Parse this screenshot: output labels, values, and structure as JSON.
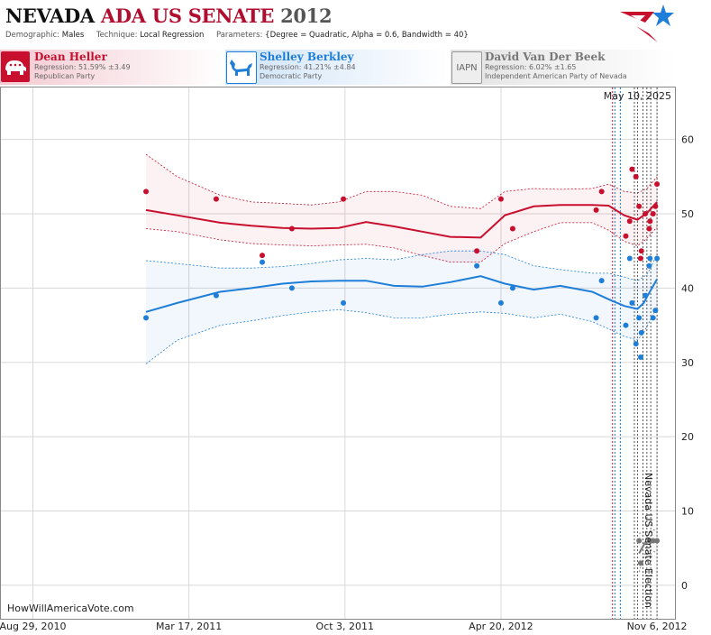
{
  "header": {
    "title_state": "NEVADA",
    "title_race": "ADA US SENATE",
    "title_year": "2012",
    "demographic_label": "Demographic:",
    "demographic_value": "Males",
    "technique_label": "Technique:",
    "technique_value": "Local Regression",
    "parameters_label": "Parameters:",
    "parameters_value": "{Degree = Quadratic, Alpha = 0.6, Bandwidth = 40}"
  },
  "candidates": [
    {
      "name": "Dean Heller",
      "regression": "Regression: 51.59% ±3.49",
      "party": "Republican Party",
      "color": "#c8102e",
      "icon": "elephant-icon"
    },
    {
      "name": "Shelley Berkley",
      "regression": "Regression: 41.21% ±4.84",
      "party": "Democratic Party",
      "color": "#1e7ed8",
      "icon": "donkey-icon"
    },
    {
      "name": "David Van Der Beek",
      "badge": "IAPN",
      "regression": "Regression: 6.02% ±1.65",
      "party": "Independent American Party of Nevada",
      "color": "#777777",
      "icon": "iapn-badge"
    }
  ],
  "watermark": "HowWillAmericaVote.com",
  "date_label": "May 10, 2025",
  "election_label": "Nevada US Senate Election",
  "chart_data": {
    "type": "scatter",
    "x_ticks": [
      "Aug 29, 2010",
      "Mar 17, 2011",
      "Oct 3, 2011",
      "Apr 20, 2012",
      "Nov 6, 2012"
    ],
    "xlim": [
      "2010-07-19",
      "2012-11-29"
    ],
    "ylim": [
      -4.5,
      67
    ],
    "y_ticks": [
      0,
      10,
      20,
      30,
      40,
      50,
      60
    ],
    "grid": true,
    "event_lines": [
      {
        "date": "2012-09-10",
        "color": "#c8102e"
      },
      {
        "date": "2012-09-13",
        "color": "#1e7ed8"
      },
      {
        "date": "2012-09-20",
        "color": "#1e7ed8"
      },
      {
        "date": "2012-10-08",
        "color": "#555555"
      },
      {
        "date": "2012-10-12",
        "color": "#555555"
      },
      {
        "date": "2012-10-19",
        "color": "#555555"
      },
      {
        "date": "2012-10-24",
        "color": "#555555"
      },
      {
        "date": "2012-10-29",
        "color": "#555555"
      },
      {
        "date": "2012-11-06",
        "color": "#555555"
      }
    ],
    "series": [
      {
        "name": "Dean Heller",
        "color": "#c8102e",
        "fit": [
          [
            "2011-01-21",
            50.5
          ],
          [
            "2011-03-02",
            49.8
          ],
          [
            "2011-04-26",
            48.8
          ],
          [
            "2011-06-05",
            48.4
          ],
          [
            "2011-07-15",
            48.1
          ],
          [
            "2011-08-21",
            48.0
          ],
          [
            "2011-09-25",
            48.1
          ],
          [
            "2011-10-30",
            48.9
          ],
          [
            "2011-12-05",
            48.3
          ],
          [
            "2012-01-10",
            47.6
          ],
          [
            "2012-02-15",
            46.9
          ],
          [
            "2012-03-25",
            46.8
          ],
          [
            "2012-04-25",
            49.8
          ],
          [
            "2012-06-01",
            51.0
          ],
          [
            "2012-07-05",
            51.2
          ],
          [
            "2012-08-15",
            51.2
          ],
          [
            "2012-09-05",
            51.1
          ],
          [
            "2012-09-25",
            49.8
          ],
          [
            "2012-10-12",
            49.2
          ],
          [
            "2012-10-20",
            49.8
          ],
          [
            "2012-10-25",
            50.2
          ],
          [
            "2012-11-06",
            51.6
          ]
        ],
        "upper": [
          [
            "2011-01-21",
            58.0
          ],
          [
            "2011-03-02",
            55.0
          ],
          [
            "2011-04-26",
            52.5
          ],
          [
            "2011-06-05",
            51.6
          ],
          [
            "2011-07-15",
            51.4
          ],
          [
            "2011-08-21",
            51.2
          ],
          [
            "2011-09-25",
            51.6
          ],
          [
            "2011-10-30",
            53.0
          ],
          [
            "2011-12-05",
            53.0
          ],
          [
            "2012-01-10",
            52.5
          ],
          [
            "2012-02-15",
            51.0
          ],
          [
            "2012-03-25",
            50.7
          ],
          [
            "2012-04-25",
            53.0
          ],
          [
            "2012-06-01",
            53.4
          ],
          [
            "2012-07-05",
            53.3
          ],
          [
            "2012-08-15",
            53.4
          ],
          [
            "2012-09-05",
            54.0
          ],
          [
            "2012-09-25",
            53.0
          ],
          [
            "2012-10-12",
            52.8
          ],
          [
            "2012-10-20",
            53.2
          ],
          [
            "2012-10-25",
            53.5
          ],
          [
            "2012-11-06",
            55.0
          ]
        ],
        "lower": [
          [
            "2011-01-21",
            48.0
          ],
          [
            "2011-03-02",
            47.6
          ],
          [
            "2011-04-26",
            46.5
          ],
          [
            "2011-06-05",
            46.0
          ],
          [
            "2011-07-15",
            45.8
          ],
          [
            "2011-08-21",
            45.7
          ],
          [
            "2011-09-25",
            45.8
          ],
          [
            "2011-10-30",
            45.9
          ],
          [
            "2011-12-05",
            45.4
          ],
          [
            "2012-01-10",
            44.4
          ],
          [
            "2012-02-15",
            43.5
          ],
          [
            "2012-03-25",
            43.5
          ],
          [
            "2012-04-25",
            46.0
          ],
          [
            "2012-06-01",
            47.6
          ],
          [
            "2012-07-05",
            48.8
          ],
          [
            "2012-08-15",
            48.8
          ],
          [
            "2012-09-05",
            47.8
          ],
          [
            "2012-09-25",
            46.3
          ],
          [
            "2012-10-12",
            45.7
          ],
          [
            "2012-10-20",
            46.3
          ],
          [
            "2012-10-25",
            46.8
          ],
          [
            "2012-11-06",
            48.2
          ]
        ],
        "points": [
          [
            "2011-01-21",
            53
          ],
          [
            "2011-04-21",
            52
          ],
          [
            "2011-06-19",
            44.4
          ],
          [
            "2011-07-27",
            48
          ],
          [
            "2011-10-01",
            52
          ],
          [
            "2012-03-20",
            45
          ],
          [
            "2012-04-20",
            52
          ],
          [
            "2012-05-05",
            48
          ],
          [
            "2012-08-20",
            50.5
          ],
          [
            "2012-08-27",
            53
          ],
          [
            "2012-09-27",
            47
          ],
          [
            "2012-10-02",
            49
          ],
          [
            "2012-10-05",
            56
          ],
          [
            "2012-10-10",
            55
          ],
          [
            "2012-10-14",
            51
          ],
          [
            "2012-10-16",
            44
          ],
          [
            "2012-10-17",
            45
          ],
          [
            "2012-10-22",
            50
          ],
          [
            "2012-10-27",
            48
          ],
          [
            "2012-10-28",
            49
          ],
          [
            "2012-11-01",
            50
          ],
          [
            "2012-11-04",
            51
          ],
          [
            "2012-11-06",
            54
          ]
        ]
      },
      {
        "name": "Shelley Berkley",
        "color": "#1e7ed8",
        "fit": [
          [
            "2011-01-21",
            36.8
          ],
          [
            "2011-03-02",
            38.0
          ],
          [
            "2011-04-26",
            39.5
          ],
          [
            "2011-06-05",
            40.0
          ],
          [
            "2011-07-15",
            40.6
          ],
          [
            "2011-08-21",
            40.9
          ],
          [
            "2011-09-25",
            41.0
          ],
          [
            "2011-10-30",
            41.0
          ],
          [
            "2011-12-05",
            40.3
          ],
          [
            "2012-01-10",
            40.2
          ],
          [
            "2012-02-15",
            40.8
          ],
          [
            "2012-03-25",
            41.6
          ],
          [
            "2012-04-25",
            40.6
          ],
          [
            "2012-06-01",
            39.8
          ],
          [
            "2012-07-05",
            40.3
          ],
          [
            "2012-08-15",
            39.5
          ],
          [
            "2012-09-05",
            38.5
          ],
          [
            "2012-09-25",
            37.6
          ],
          [
            "2012-10-12",
            37.2
          ],
          [
            "2012-10-20",
            38.0
          ],
          [
            "2012-10-25",
            39.0
          ],
          [
            "2012-11-06",
            41.2
          ]
        ],
        "upper": [
          [
            "2011-01-21",
            43.7
          ],
          [
            "2011-03-02",
            43.3
          ],
          [
            "2011-04-26",
            42.7
          ],
          [
            "2011-06-05",
            42.7
          ],
          [
            "2011-07-15",
            42.9
          ],
          [
            "2011-08-21",
            43.3
          ],
          [
            "2011-09-25",
            43.8
          ],
          [
            "2011-10-30",
            44.0
          ],
          [
            "2011-12-05",
            43.8
          ],
          [
            "2012-01-10",
            44.5
          ],
          [
            "2012-02-15",
            45.0
          ],
          [
            "2012-03-25",
            45.0
          ],
          [
            "2012-04-25",
            44.5
          ],
          [
            "2012-06-01",
            43.0
          ],
          [
            "2012-07-05",
            42.5
          ],
          [
            "2012-08-15",
            42.0
          ],
          [
            "2012-09-05",
            42.0
          ],
          [
            "2012-09-25",
            41.5
          ],
          [
            "2012-10-12",
            41.0
          ],
          [
            "2012-10-20",
            41.5
          ],
          [
            "2012-10-25",
            42.0
          ],
          [
            "2012-11-06",
            44.5
          ]
        ],
        "lower": [
          [
            "2011-01-21",
            29.8
          ],
          [
            "2011-03-02",
            33.0
          ],
          [
            "2011-04-26",
            35.0
          ],
          [
            "2011-06-05",
            35.6
          ],
          [
            "2011-07-15",
            36.3
          ],
          [
            "2011-08-21",
            36.8
          ],
          [
            "2011-09-25",
            37.1
          ],
          [
            "2011-10-30",
            36.7
          ],
          [
            "2011-12-05",
            36.0
          ],
          [
            "2012-01-10",
            36.0
          ],
          [
            "2012-02-15",
            36.5
          ],
          [
            "2012-03-25",
            36.8
          ],
          [
            "2012-04-25",
            36.6
          ],
          [
            "2012-06-01",
            36.0
          ],
          [
            "2012-07-05",
            36.5
          ],
          [
            "2012-08-15",
            35.5
          ],
          [
            "2012-09-05",
            34.5
          ],
          [
            "2012-09-25",
            33.5
          ],
          [
            "2012-10-12",
            33.0
          ],
          [
            "2012-10-20",
            34.0
          ],
          [
            "2012-10-25",
            35.0
          ],
          [
            "2012-11-06",
            37.5
          ]
        ],
        "points": [
          [
            "2011-01-21",
            36
          ],
          [
            "2011-04-21",
            39
          ],
          [
            "2011-06-19",
            43.5
          ],
          [
            "2011-07-27",
            40
          ],
          [
            "2011-10-01",
            38
          ],
          [
            "2012-03-20",
            43
          ],
          [
            "2012-04-20",
            38
          ],
          [
            "2012-05-05",
            40
          ],
          [
            "2012-08-20",
            36
          ],
          [
            "2012-08-27",
            41
          ],
          [
            "2012-09-27",
            35
          ],
          [
            "2012-10-02",
            44
          ],
          [
            "2012-10-05",
            38
          ],
          [
            "2012-10-10",
            32.5
          ],
          [
            "2012-10-14",
            36
          ],
          [
            "2012-10-16",
            30.7
          ],
          [
            "2012-10-17",
            34
          ],
          [
            "2012-10-22",
            39
          ],
          [
            "2012-10-27",
            43
          ],
          [
            "2012-10-28",
            44
          ],
          [
            "2012-11-01",
            36
          ],
          [
            "2012-11-04",
            37
          ],
          [
            "2012-11-06",
            44
          ]
        ]
      },
      {
        "name": "David Van Der Beek",
        "color": "#777777",
        "fit": [
          [
            "2012-10-14",
            4.3
          ],
          [
            "2012-10-22",
            5.8
          ],
          [
            "2012-10-28",
            6.0
          ],
          [
            "2012-11-06",
            6.0
          ]
        ],
        "upper": [
          [
            "2012-10-14",
            7.0
          ],
          [
            "2012-10-22",
            7.2
          ],
          [
            "2012-10-28",
            7.3
          ],
          [
            "2012-11-06",
            7.6
          ]
        ],
        "lower": [
          [
            "2012-10-14",
            1.8
          ],
          [
            "2012-10-22",
            4.3
          ],
          [
            "2012-10-28",
            4.7
          ],
          [
            "2012-11-06",
            4.4
          ]
        ],
        "points": [
          [
            "2012-10-14",
            6
          ],
          [
            "2012-10-16",
            3
          ],
          [
            "2012-10-28",
            6
          ],
          [
            "2012-11-01",
            6
          ],
          [
            "2012-11-06",
            6
          ]
        ]
      }
    ]
  }
}
